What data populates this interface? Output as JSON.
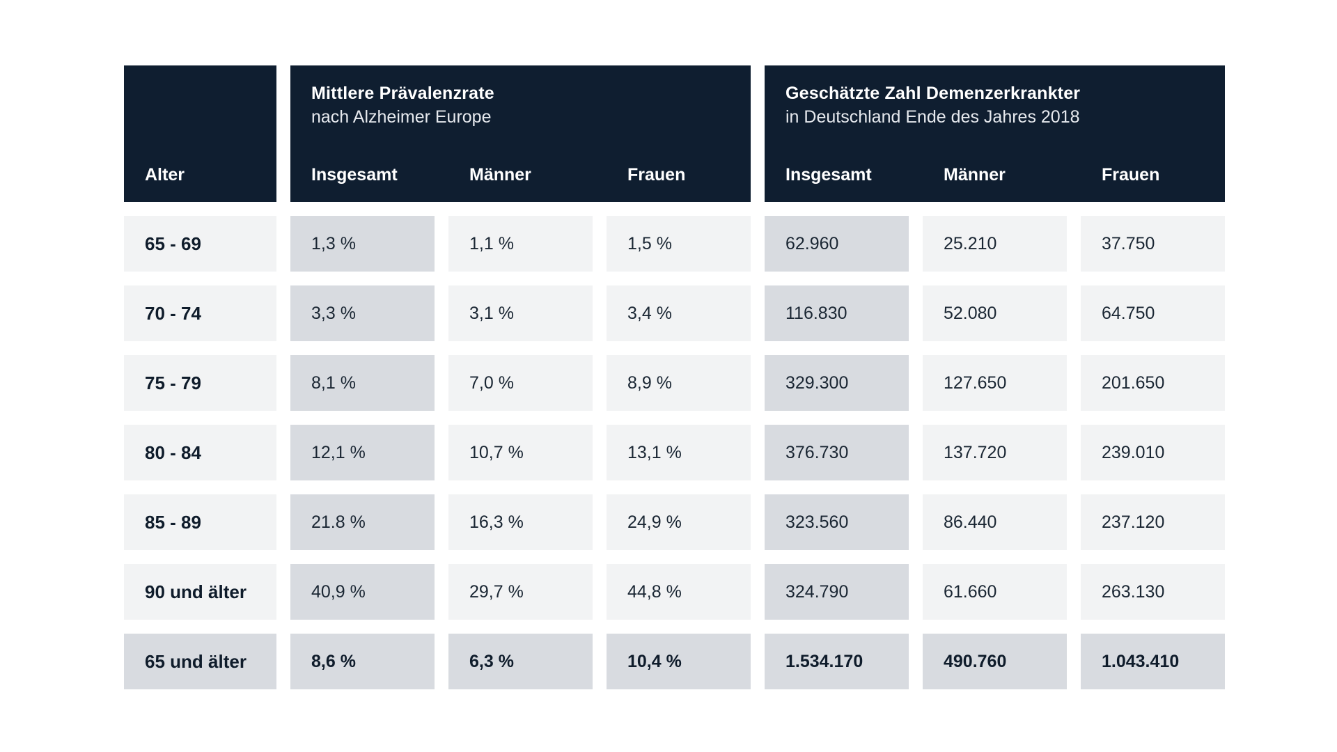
{
  "header": {
    "age_label": "Alter",
    "group1": {
      "title": "Mittlere Prävalenzrate",
      "subtitle": "nach Alzheimer Europe",
      "cols": [
        "Insgesamt",
        "Männer",
        "Frauen"
      ]
    },
    "group2": {
      "title": "Geschätzte Zahl Demenzerkrankter",
      "subtitle": "in Deutschland Ende des Jahres 2018",
      "cols": [
        "Insgesamt",
        "Männer",
        "Frauen"
      ]
    }
  },
  "rows": [
    {
      "age": "65 - 69",
      "values": [
        "1,3 %",
        "1,1 %",
        "1,5 %",
        "62.960",
        "25.210",
        "37.750"
      ]
    },
    {
      "age": "70 - 74",
      "values": [
        "3,3 %",
        "3,1 %",
        "3,4 %",
        "116.830",
        "52.080",
        "64.750"
      ]
    },
    {
      "age": "75 - 79",
      "values": [
        "8,1 %",
        "7,0 %",
        "8,9 %",
        "329.300",
        "127.650",
        "201.650"
      ]
    },
    {
      "age": "80 - 84",
      "values": [
        "12,1 %",
        "10,7 %",
        "13,1 %",
        "376.730",
        "137.720",
        "239.010"
      ]
    },
    {
      "age": "85 - 89",
      "values": [
        "21.8 %",
        "16,3 %",
        "24,9 %",
        "323.560",
        "86.440",
        "237.120"
      ]
    },
    {
      "age": "90 und älter",
      "values": [
        "40,9 %",
        "29,7 %",
        "44,8 %",
        "324.790",
        "61.660",
        "263.130"
      ]
    },
    {
      "age": "65 und älter",
      "values": [
        "8,6 %",
        "6,3 %",
        "10,4 %",
        "1.534.170",
        "490.760",
        "1.043.410"
      ]
    }
  ],
  "colors": {
    "header_bg": "#0f1e30",
    "cell_light": "#f2f3f4",
    "cell_mid": "#d8dbe0",
    "text": "#1a2633"
  }
}
